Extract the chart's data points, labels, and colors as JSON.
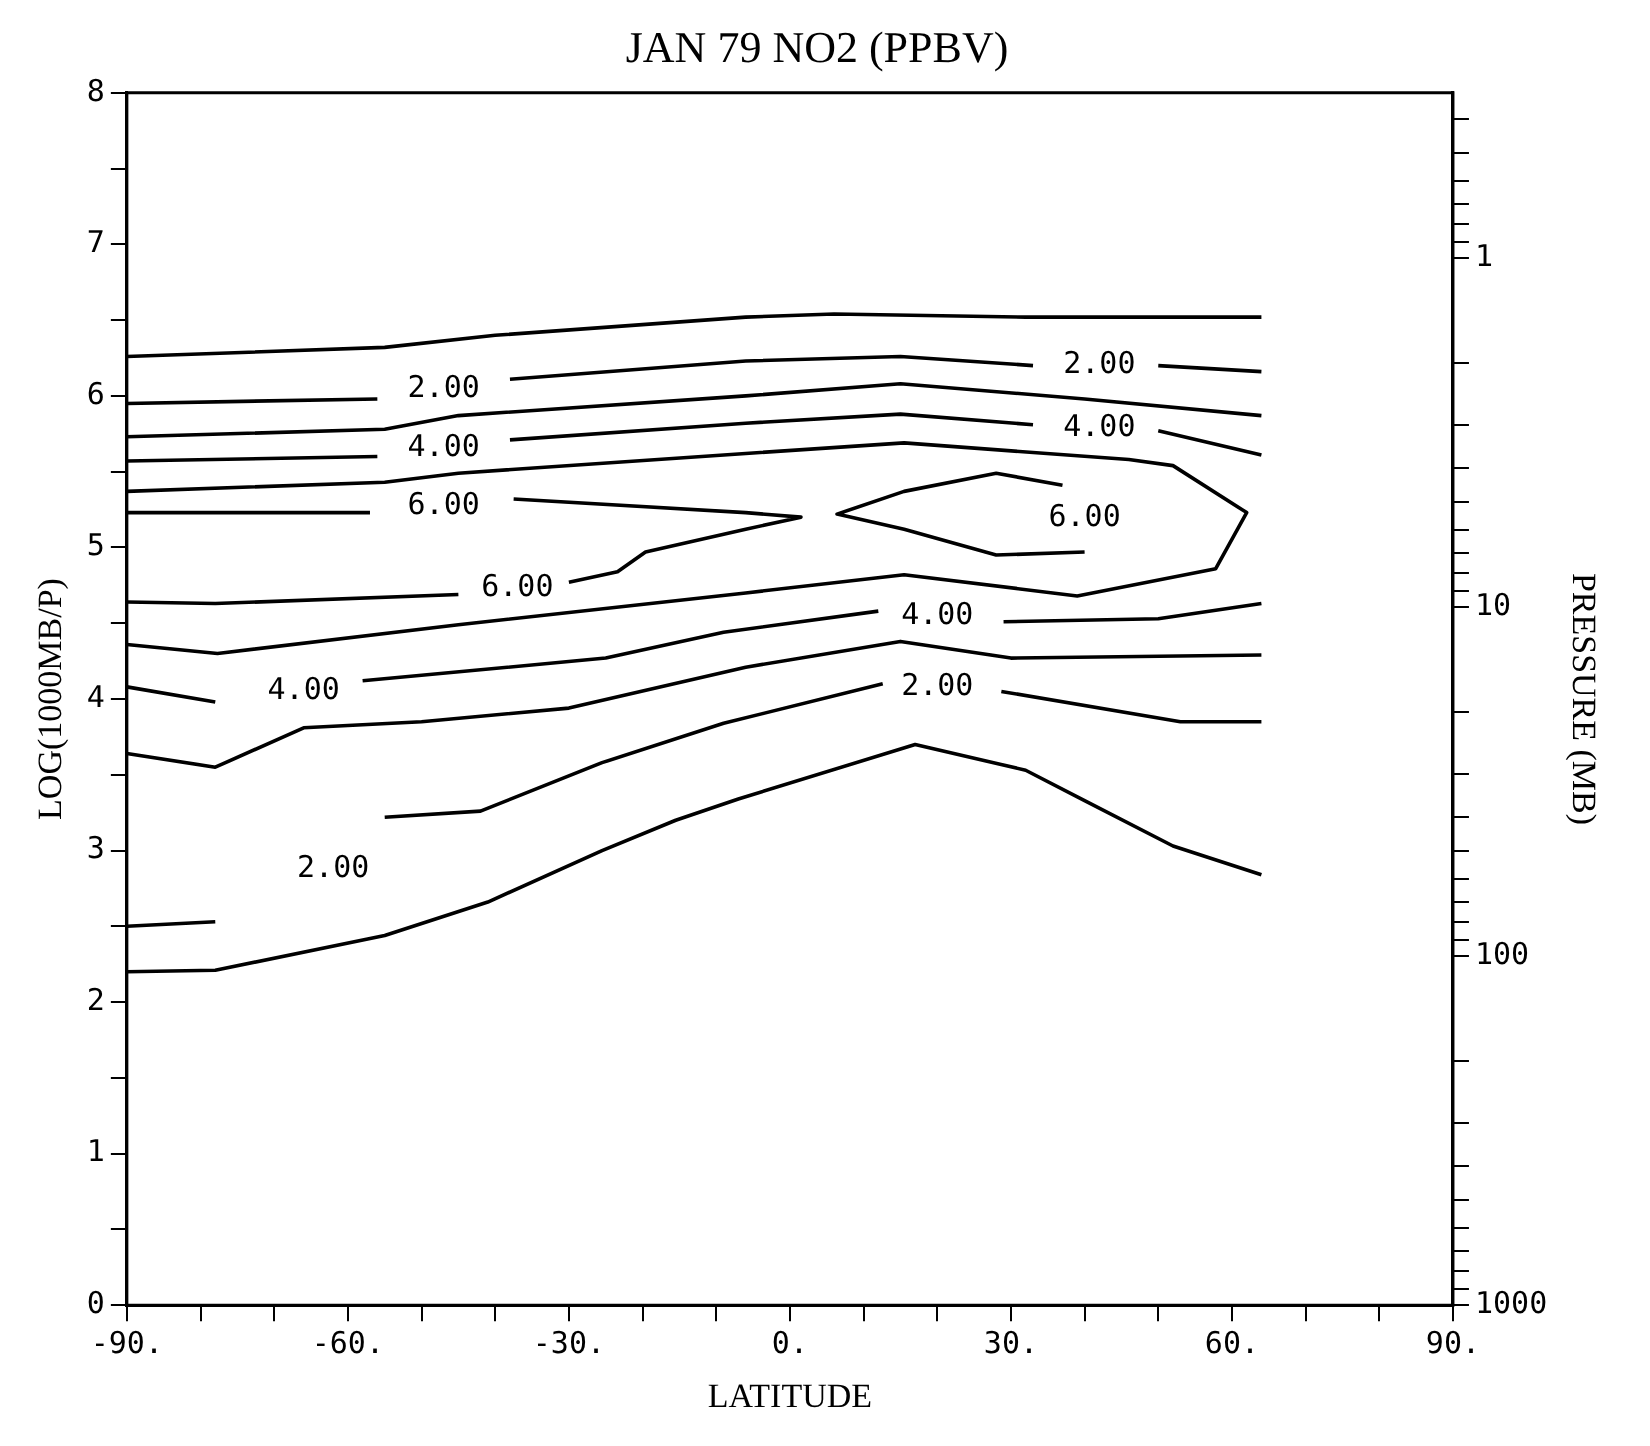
{
  "chart_data": {
    "type": "line",
    "title": "JAN 79 NO2 (PPBV)",
    "xlabel": "LATITUDE",
    "ylabel": "LOG(1000MB/P)",
    "y2label": "PRESSURE (MB)",
    "series": [
      {
        "color": "#000000",
        "x": [
          -90,
          -55,
          -40,
          -6,
          6,
          32,
          64
        ],
        "values": [
          6.26,
          6.32,
          6.4,
          6.52,
          6.54,
          6.52,
          6.52
        ]
      },
      {
        "name": "2.00",
        "color": "#000000",
        "x": [
          -90,
          -56,
          -47,
          -38,
          -6,
          15,
          33,
          42,
          50,
          64
        ],
        "values": [
          5.95,
          5.98,
          null,
          6.11,
          6.23,
          6.26,
          6.2,
          null,
          6.2,
          6.16
        ]
      },
      {
        "color": "#000000",
        "x": [
          -90,
          -55,
          -45,
          -6,
          15,
          40,
          64
        ],
        "values": [
          5.73,
          5.78,
          5.87,
          6.0,
          6.08,
          5.98,
          5.87
        ]
      },
      {
        "name": "4.00",
        "color": "#000000",
        "x": [
          -90,
          -56,
          -47,
          -38,
          -6,
          15,
          33,
          42,
          50,
          64
        ],
        "values": [
          5.57,
          5.6,
          null,
          5.71,
          5.82,
          5.88,
          5.81,
          null,
          5.77,
          5.61
        ]
      },
      {
        "color": "#000000",
        "x": [
          -90,
          -55,
          -45,
          -6,
          15.5,
          46,
          52,
          62,
          57.8,
          39,
          15.5,
          -6,
          -45,
          -77.7,
          -90
        ],
        "values": [
          5.37,
          5.43,
          5.49,
          5.62,
          5.69,
          5.58,
          5.54,
          5.23,
          4.86,
          4.68,
          4.82,
          4.7,
          4.49,
          4.3,
          4.36
        ]
      },
      {
        "name": "6.00",
        "color": "#000000",
        "x": [
          -90,
          -57,
          -47,
          -37.5,
          -6,
          1.5,
          -6,
          -19.6,
          -23.4,
          -30,
          -37,
          -45,
          -78,
          -90
        ],
        "values": [
          5.23,
          5.23,
          null,
          5.32,
          5.23,
          5.2,
          5.12,
          4.97,
          4.84,
          4.77,
          null,
          4.69,
          4.63,
          4.64
        ]
      },
      {
        "name": "6.00",
        "color": "#000000",
        "x": [
          37,
          28,
          15.5,
          6.4,
          15.5,
          28,
          40
        ],
        "values": [
          5.41,
          5.49,
          5.37,
          5.22,
          5.12,
          4.95,
          4.97
        ]
      },
      {
        "name": "4.00",
        "color": "#000000",
        "x": [
          -90,
          -78,
          -66,
          -58,
          -25,
          -9,
          12,
          20,
          29,
          50,
          64
        ],
        "values": [
          4.08,
          3.98,
          null,
          4.12,
          4.27,
          4.44,
          4.58,
          null,
          4.51,
          4.53,
          4.63
        ]
      },
      {
        "color": "#000000",
        "x": [
          -90,
          -78,
          -66,
          -50,
          -30,
          -6,
          15,
          30,
          64
        ],
        "values": [
          3.64,
          3.55,
          3.81,
          3.85,
          3.94,
          4.21,
          4.38,
          4.27,
          4.29
        ]
      },
      {
        "name": "2.00",
        "color": "#000000",
        "x": [
          -90,
          -78,
          -62,
          -55,
          -42,
          -25.5,
          -9,
          12.6,
          20,
          28.7,
          53,
          64
        ],
        "values": [
          2.5,
          2.53,
          null,
          3.22,
          3.26,
          3.58,
          3.84,
          4.1,
          null,
          4.05,
          3.85,
          3.85
        ]
      },
      {
        "color": "#000000",
        "x": [
          -90,
          -78,
          -55,
          -41,
          -25.5,
          -15.5,
          -7,
          17,
          32,
          40,
          52,
          64
        ],
        "values": [
          2.2,
          2.21,
          2.44,
          2.66,
          3.0,
          3.2,
          3.34,
          3.7,
          3.53,
          3.33,
          3.03,
          2.84
        ]
      }
    ],
    "xlim": [
      -90,
      90
    ],
    "xticks": [
      {
        "value": -90,
        "label": "-90."
      },
      {
        "value": -80,
        "label": null
      },
      {
        "value": -70,
        "label": null
      },
      {
        "value": -60,
        "label": "-60."
      },
      {
        "value": -50,
        "label": null
      },
      {
        "value": -40,
        "label": null
      },
      {
        "value": -30,
        "label": "-30."
      },
      {
        "value": -20,
        "label": null
      },
      {
        "value": -10,
        "label": null
      },
      {
        "value": 0,
        "label": "0."
      },
      {
        "value": 10,
        "label": null
      },
      {
        "value": 20,
        "label": null
      },
      {
        "value": 30,
        "label": "30."
      },
      {
        "value": 40,
        "label": null
      },
      {
        "value": 50,
        "label": null
      },
      {
        "value": 60,
        "label": "60."
      },
      {
        "value": 70,
        "label": null
      },
      {
        "value": 80,
        "label": null
      },
      {
        "value": 90,
        "label": "90."
      }
    ],
    "ylim": [
      0,
      8
    ],
    "yticks": [
      0,
      {
        "value": 0.5,
        "label": null
      },
      1,
      {
        "value": 1.5,
        "label": null
      },
      2,
      {
        "value": 2.5,
        "label": null
      },
      3,
      {
        "value": 3.5,
        "label": null
      },
      4,
      {
        "value": 4.5,
        "label": null
      },
      5,
      {
        "value": 5.5,
        "label": null
      },
      6,
      {
        "value": 6.5,
        "label": null
      },
      7,
      {
        "value": 7.5,
        "label": null
      },
      8
    ],
    "log": "y2",
    "y2lim": [
      1000,
      0.3355
    ],
    "y2ticks": [
      {
        "value": 0.4,
        "label": null
      },
      {
        "value": 0.5,
        "label": null
      },
      {
        "value": 0.6,
        "label": null
      },
      {
        "value": 0.7,
        "label": null
      },
      {
        "value": 0.8,
        "label": null
      },
      {
        "value": 0.9,
        "label": null
      },
      1,
      {
        "value": 2,
        "label": null
      },
      {
        "value": 3,
        "label": null
      },
      {
        "value": 4,
        "label": null
      },
      {
        "value": 5,
        "label": null
      },
      {
        "value": 6,
        "label": null
      },
      {
        "value": 7,
        "label": null
      },
      {
        "value": 8,
        "label": null
      },
      {
        "value": 9,
        "label": null
      },
      10,
      {
        "value": 20,
        "label": null
      },
      {
        "value": 30,
        "label": null
      },
      {
        "value": 40,
        "label": null
      },
      {
        "value": 50,
        "label": null
      },
      {
        "value": 60,
        "label": null
      },
      {
        "value": 70,
        "label": null
      },
      {
        "value": 80,
        "label": null
      },
      {
        "value": 90,
        "label": null
      },
      100,
      {
        "value": 200,
        "label": null
      },
      {
        "value": 300,
        "label": null
      },
      {
        "value": 400,
        "label": null
      },
      {
        "value": 500,
        "label": null
      },
      {
        "value": 600,
        "label": null
      },
      {
        "value": 700,
        "label": null
      },
      {
        "value": 800,
        "label": null
      },
      {
        "value": 900,
        "label": null
      },
      1000
    ],
    "grid": false,
    "legend": false,
    "marker": "none",
    "line_style": "solid"
  }
}
